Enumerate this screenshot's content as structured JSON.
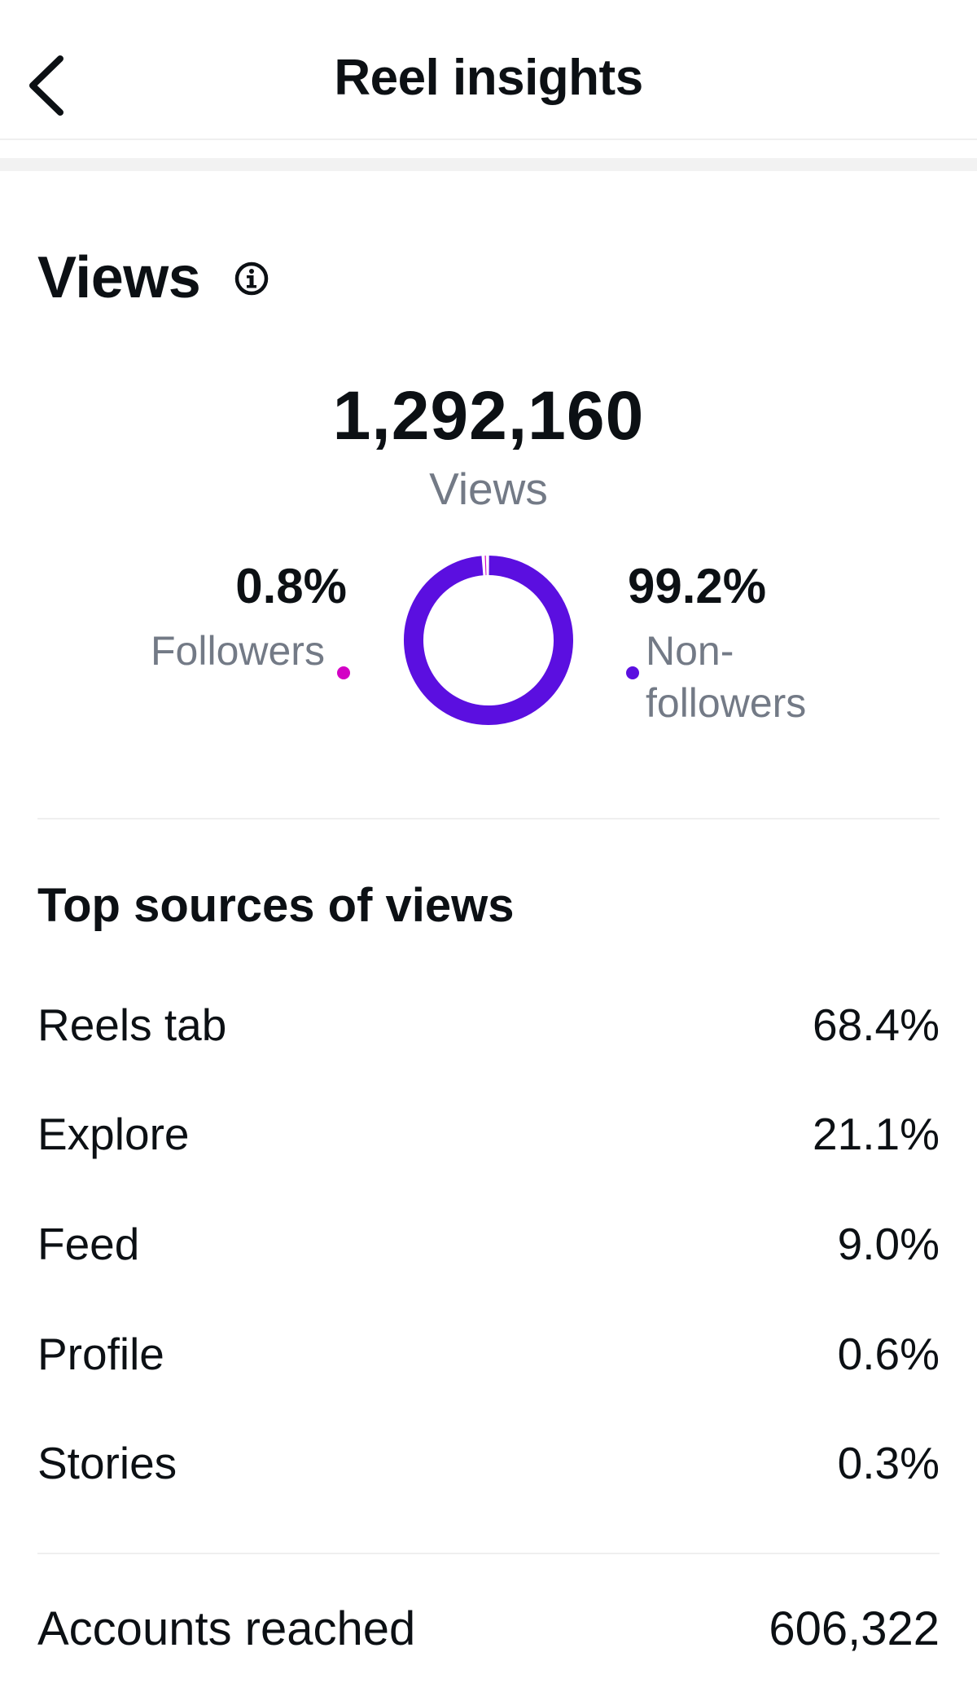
{
  "header": {
    "title": "Reel insights",
    "back_icon": "chevron-left-icon"
  },
  "views": {
    "heading": "Views",
    "info_icon": "info-icon",
    "total": "1,292,160",
    "total_label": "Views"
  },
  "chart_data": {
    "type": "pie",
    "style": "donut",
    "categories": [
      "Followers",
      "Non-followers"
    ],
    "values": [
      0.8,
      99.2
    ],
    "value_labels": [
      "0.8%",
      "99.2%"
    ],
    "colors": [
      "#d300c5",
      "#5b0fe0"
    ]
  },
  "audience": {
    "followers": {
      "percent": "0.8%",
      "label": "Followers"
    },
    "non_followers": {
      "percent": "99.2%",
      "label": "Non-followers"
    }
  },
  "sources": {
    "heading": "Top sources of views",
    "items": [
      {
        "label": "Reels tab",
        "value": "68.4%"
      },
      {
        "label": "Explore",
        "value": "21.1%"
      },
      {
        "label": "Feed",
        "value": "9.0%"
      },
      {
        "label": "Profile",
        "value": "0.6%"
      },
      {
        "label": "Stories",
        "value": "0.3%"
      }
    ]
  },
  "reach": {
    "label": "Accounts reached",
    "value": "606,322"
  }
}
